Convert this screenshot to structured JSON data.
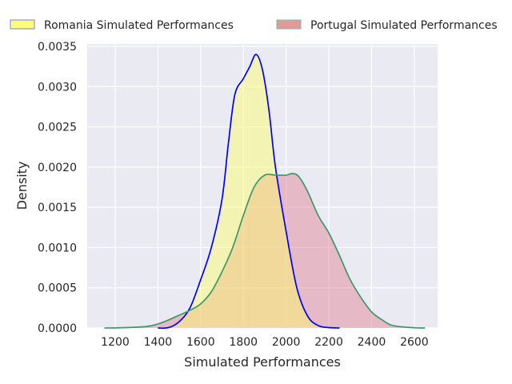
{
  "chart_data": {
    "type": "area",
    "title": "",
    "xlabel": "Simulated Performances",
    "ylabel": "Density",
    "xlim": [
      1069,
      2709
    ],
    "ylim": [
      0,
      0.00353
    ],
    "xticks": [
      1200,
      1400,
      1600,
      1800,
      2000,
      2200,
      2400,
      2600
    ],
    "yticks": [
      "0.0000",
      "0.0005",
      "0.0010",
      "0.0015",
      "0.0020",
      "0.0025",
      "0.0030",
      "0.0035"
    ],
    "grid": true,
    "legend_position": "top",
    "series": [
      {
        "name": "Romania Simulated Performances",
        "line_color": "#0000ff",
        "fill_color": "#ffff66",
        "x": [
          1400,
          1450,
          1500,
          1550,
          1600,
          1650,
          1700,
          1730,
          1760,
          1800,
          1830,
          1860,
          1890,
          1920,
          1950,
          2000,
          2050,
          2100,
          2150,
          2200,
          2250
        ],
        "y": [
          0,
          5e-06,
          8e-05,
          0.00025,
          0.0006,
          0.001,
          0.0016,
          0.0023,
          0.0029,
          0.0031,
          0.00325,
          0.0034,
          0.0032,
          0.0027,
          0.002,
          0.0012,
          0.0005,
          0.00015,
          3e-05,
          5e-06,
          0
        ]
      },
      {
        "name": "Portugal Simulated Performances",
        "line_color": "#3a9a6a",
        "fill_color": "#e08a9a",
        "x": [
          1150,
          1250,
          1350,
          1400,
          1450,
          1500,
          1550,
          1600,
          1650,
          1700,
          1750,
          1800,
          1850,
          1900,
          1950,
          2000,
          2030,
          2060,
          2100,
          2150,
          2200,
          2250,
          2300,
          2350,
          2400,
          2450,
          2500,
          2600,
          2650
        ],
        "y": [
          0,
          5e-06,
          2e-05,
          5e-05,
          0.0001,
          0.00016,
          0.00022,
          0.0003,
          0.00045,
          0.0007,
          0.001,
          0.0014,
          0.00175,
          0.0019,
          0.0019,
          0.0019,
          0.00192,
          0.00188,
          0.0017,
          0.0014,
          0.00118,
          0.0009,
          0.0006,
          0.00038,
          0.0002,
          0.0001,
          3e-05,
          3e-06,
          0
        ]
      }
    ]
  }
}
